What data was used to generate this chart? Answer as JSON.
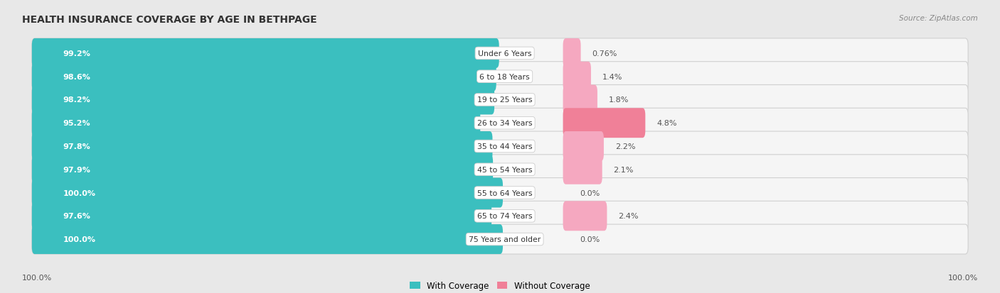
{
  "title": "HEALTH INSURANCE COVERAGE BY AGE IN BETHPAGE",
  "source": "Source: ZipAtlas.com",
  "categories": [
    "Under 6 Years",
    "6 to 18 Years",
    "19 to 25 Years",
    "26 to 34 Years",
    "35 to 44 Years",
    "45 to 54 Years",
    "55 to 64 Years",
    "65 to 74 Years",
    "75 Years and older"
  ],
  "with_coverage": [
    99.2,
    98.6,
    98.2,
    95.2,
    97.8,
    97.9,
    100.0,
    97.6,
    100.0
  ],
  "without_coverage": [
    0.76,
    1.4,
    1.8,
    4.8,
    2.2,
    2.1,
    0.0,
    2.4,
    0.0
  ],
  "with_coverage_labels": [
    "99.2%",
    "98.6%",
    "98.2%",
    "95.2%",
    "97.8%",
    "97.9%",
    "100.0%",
    "97.6%",
    "100.0%"
  ],
  "without_coverage_labels": [
    "0.76%",
    "1.4%",
    "1.8%",
    "4.8%",
    "2.2%",
    "2.1%",
    "0.0%",
    "2.4%",
    "0.0%"
  ],
  "color_with": "#3BBFBF",
  "color_without": "#F08098",
  "color_without_light": "#F5A8C0",
  "bg_color": "#e8e8e8",
  "bar_bg": "#f0f0f0",
  "title_fontsize": 10,
  "legend_label_with": "With Coverage",
  "legend_label_without": "Without Coverage",
  "legend_color_with": "#3BBFBF",
  "legend_color_without": "#F08098"
}
